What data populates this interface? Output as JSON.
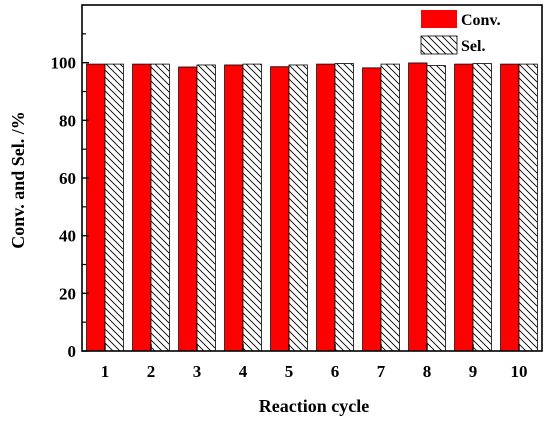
{
  "chart_data": {
    "type": "bar",
    "categories": [
      "1",
      "2",
      "3",
      "4",
      "5",
      "6",
      "7",
      "8",
      "9",
      "10"
    ],
    "series": [
      {
        "name": "Conv.",
        "values": [
          99.5,
          99.5,
          98.5,
          99.2,
          98.6,
          99.5,
          98.2,
          99.9,
          99.5,
          99.5
        ],
        "color": "#ff0000",
        "pattern": "solid"
      },
      {
        "name": "Sel.",
        "values": [
          99.5,
          99.5,
          99.2,
          99.5,
          99.2,
          99.7,
          99.5,
          99.0,
          99.7,
          99.5
        ],
        "color": "#ffffff",
        "pattern": "hatch"
      }
    ],
    "xlabel": "Reaction cycle",
    "ylabel": "Conv. and Sel. /%",
    "ylim": [
      0,
      120
    ],
    "yticks": [
      "0",
      "20",
      "40",
      "60",
      "80",
      "100"
    ],
    "grid": false,
    "legend": "top-right"
  }
}
